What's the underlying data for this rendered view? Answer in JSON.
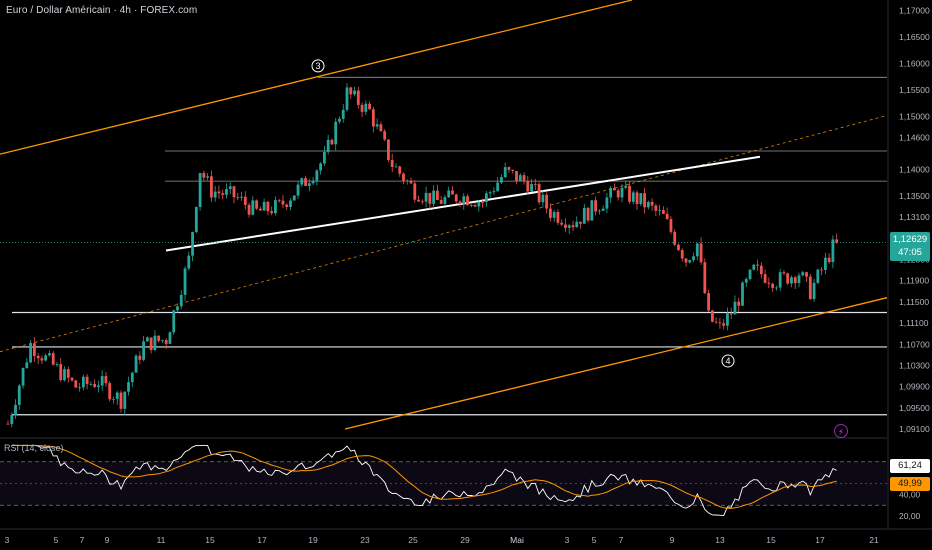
{
  "header": {
    "title": "Euro / Dollar Américain · 4h · FOREX.com"
  },
  "rsi_panel": {
    "label": "RSI (14, close)"
  },
  "price_tag": {
    "price": "1,12629",
    "countdown": "47:05"
  },
  "rsi_tags": {
    "rsi_value": "61,24",
    "ma_value": "49,99"
  },
  "icons": {
    "alert": "lightning-icon"
  },
  "colors": {
    "background": "#000000",
    "bull": "#26a69a",
    "bear": "#ef5350",
    "channel": "#ff9800",
    "rsi_line": "#ffffff",
    "rsi_ma": "#ff9800"
  },
  "chart_data": {
    "type": "candlestick",
    "instrument": "EUR/USD",
    "timeframe": "4h",
    "x_ticks": [
      "3",
      "5",
      "7",
      "9",
      "11",
      "15",
      "17",
      "19",
      "23",
      "25",
      "29",
      "Mai",
      "3",
      "5",
      "7",
      "9",
      "13",
      "15",
      "17",
      "21"
    ],
    "y_ticks": [
      "1,17000",
      "1,16500",
      "1,16000",
      "1,15500",
      "1,15000",
      "1,14600",
      "1,14000",
      "1,13500",
      "1,13100",
      "1,12300",
      "1,11900",
      "1,11500",
      "1,11100",
      "1,10700",
      "1,10300",
      "1,09900",
      "1,09500",
      "1,09100"
    ],
    "ylim": [
      1.0895,
      1.172
    ],
    "levels": [
      1.1574,
      1.1435,
      1.1378,
      1.113,
      1.1065,
      1.0937
    ],
    "wave_labels": [
      {
        "label": "3",
        "price": 1.1573
      },
      {
        "label": "4",
        "price": 1.1065
      }
    ],
    "anchors": [
      {
        "day": 0.0,
        "price": 1.092
      },
      {
        "day": 1.0,
        "price": 1.107
      },
      {
        "day": 2.0,
        "price": 1.103
      },
      {
        "day": 3.0,
        "price": 1.099
      },
      {
        "day": 4.0,
        "price": 1.1
      },
      {
        "day": 5.0,
        "price": 1.0965
      },
      {
        "day": 6.0,
        "price": 1.107
      },
      {
        "day": 7.0,
        "price": 1.108
      },
      {
        "day": 8.0,
        "price": 1.123
      },
      {
        "day": 8.5,
        "price": 1.14
      },
      {
        "day": 9.0,
        "price": 1.136
      },
      {
        "day": 10.0,
        "price": 1.135
      },
      {
        "day": 11.0,
        "price": 1.132
      },
      {
        "day": 12.0,
        "price": 1.133
      },
      {
        "day": 13.0,
        "price": 1.137
      },
      {
        "day": 14.0,
        "price": 1.142
      },
      {
        "day": 15.0,
        "price": 1.1545
      },
      {
        "day": 16.0,
        "price": 1.151
      },
      {
        "day": 17.0,
        "price": 1.141
      },
      {
        "day": 18.0,
        "price": 1.136
      },
      {
        "day": 19.0,
        "price": 1.134
      },
      {
        "day": 20.0,
        "price": 1.135
      },
      {
        "day": 21.0,
        "price": 1.134
      },
      {
        "day": 22.0,
        "price": 1.1395
      },
      {
        "day": 23.0,
        "price": 1.1375
      },
      {
        "day": 24.0,
        "price": 1.132
      },
      {
        "day": 25.0,
        "price": 1.13
      },
      {
        "day": 26.0,
        "price": 1.133
      },
      {
        "day": 27.0,
        "price": 1.136
      },
      {
        "day": 28.0,
        "price": 1.134
      },
      {
        "day": 29.0,
        "price": 1.131
      },
      {
        "day": 30.0,
        "price": 1.123
      },
      {
        "day": 30.5,
        "price": 1.126
      },
      {
        "day": 31.0,
        "price": 1.112
      },
      {
        "day": 31.5,
        "price": 1.11
      },
      {
        "day": 32.0,
        "price": 1.113
      },
      {
        "day": 33.0,
        "price": 1.121
      },
      {
        "day": 34.0,
        "price": 1.119
      },
      {
        "day": 35.0,
        "price": 1.1205
      },
      {
        "day": 35.5,
        "price": 1.117
      },
      {
        "day": 36.0,
        "price": 1.121
      },
      {
        "day": 36.6,
        "price": 1.1262
      }
    ],
    "rsi": {
      "period": 14,
      "ylim": [
        10,
        90
      ],
      "y_ticks": [
        "20,00",
        "40,00"
      ],
      "levels": [
        70,
        30
      ],
      "last": 61.24,
      "ma_last": 49.99
    }
  }
}
